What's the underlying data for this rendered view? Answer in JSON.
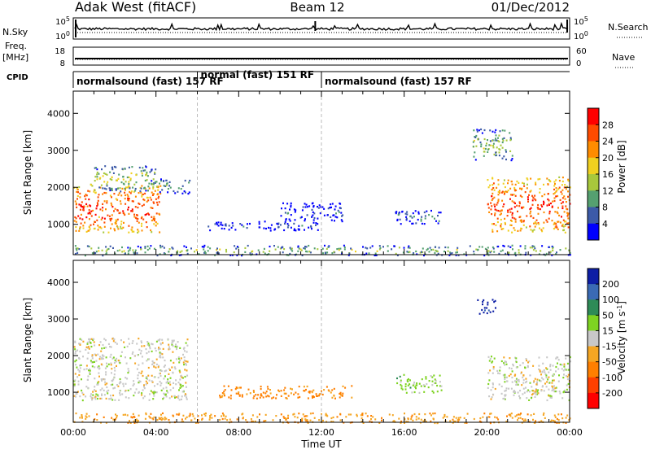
{
  "header": {
    "station": "Adak West (fitACF)",
    "beam": "Beam 12",
    "date": "01/Dec/2012"
  },
  "strip_labels": {
    "nsky": "N.Sky",
    "nsearch": "N.Search",
    "freq_line1": "Freq.",
    "freq_line2": "[MHz]",
    "nave": "Nave",
    "cpid": "CPID"
  },
  "axis": {
    "x_label": "Time UT",
    "y_label": "Slant Range [km]",
    "x_ticks": [
      "00:00",
      "04:00",
      "08:00",
      "12:00",
      "16:00",
      "20:00",
      "00:00"
    ],
    "y_ticks": [
      "1000",
      "2000",
      "3000",
      "4000"
    ],
    "nsky_ticks": [
      "10^5",
      "10^0"
    ],
    "nsearch_ticks": [
      "10^5",
      "10^0"
    ],
    "freq_ticks": [
      "18",
      "8"
    ],
    "nave_ticks": [
      "60",
      "0"
    ]
  },
  "cpid_segments": [
    {
      "label": "normalsound (fast) 157 RF",
      "start_h": 0,
      "end_h": 6
    },
    {
      "label": "normal (fast) 151 RF",
      "start_h": 6,
      "end_h": 12
    },
    {
      "label": "normalsound (fast) 157 RF",
      "start_h": 12,
      "end_h": 24
    }
  ],
  "power_colorbar": {
    "label": "Power [dB]",
    "ticks": [
      "28",
      "24",
      "20",
      "16",
      "12",
      "8",
      "4"
    ],
    "colors": [
      "#ff0000",
      "#ff4b00",
      "#ff8c00",
      "#f0d020",
      "#a8c83c",
      "#55a070",
      "#3c5aa8",
      "#0000ff"
    ]
  },
  "velocity_colorbar": {
    "label": "Velocity [m s^-1]",
    "ticks": [
      "200",
      "100",
      "50",
      "15",
      "-15",
      "-50",
      "-100",
      "-200"
    ],
    "colors": [
      "#0d1ea5",
      "#3a6ab4",
      "#2e8b57",
      "#7ed321",
      "#c8c8c8",
      "#f5a623",
      "#ff7f00",
      "#ff4000",
      "#ff0000"
    ]
  },
  "chart_data": [
    {
      "type": "heatmap",
      "title": "Power",
      "xlabel": "Time UT",
      "ylabel": "Slant Range [km]",
      "xlim": [
        0,
        24
      ],
      "ylim": [
        180,
        4600
      ],
      "colorbar_label": "Power [dB]",
      "colorbar_range": [
        0,
        32
      ],
      "echo_regions": [
        {
          "t0": 0.0,
          "t1": 4.2,
          "r0": 800,
          "r1": 2100,
          "db": 28
        },
        {
          "t0": 1.0,
          "t1": 4.0,
          "r0": 1900,
          "r1": 2600,
          "db": 16
        },
        {
          "t0": 3.7,
          "t1": 5.6,
          "r0": 1850,
          "r1": 2250,
          "db": 12
        },
        {
          "t0": 6.5,
          "t1": 11.8,
          "r0": 850,
          "r1": 1100,
          "db": 6
        },
        {
          "t0": 10.0,
          "t1": 13.0,
          "r0": 1100,
          "r1": 1600,
          "db": 6
        },
        {
          "t0": 15.5,
          "t1": 17.8,
          "r0": 1000,
          "r1": 1400,
          "db": 8
        },
        {
          "t0": 19.3,
          "t1": 21.2,
          "r0": 2750,
          "r1": 3600,
          "db": 14
        },
        {
          "t0": 20.0,
          "t1": 24.0,
          "r0": 800,
          "r1": 2300,
          "db": 28
        },
        {
          "t0": 0.0,
          "t1": 24.0,
          "r0": 180,
          "r1": 450,
          "db": 14
        }
      ]
    },
    {
      "type": "heatmap",
      "title": "Velocity",
      "xlabel": "Time UT",
      "ylabel": "Slant Range [km]",
      "xlim": [
        0,
        24
      ],
      "ylim": [
        180,
        4600
      ],
      "colorbar_label": "Velocity [m s^-1]",
      "colorbar_range": [
        -240,
        240
      ],
      "echo_regions": [
        {
          "t0": 0.0,
          "t1": 5.5,
          "r0": 800,
          "r1": 2500,
          "v": 0
        },
        {
          "t0": 7.0,
          "t1": 13.5,
          "r0": 850,
          "r1": 1200,
          "v": -60
        },
        {
          "t0": 15.5,
          "t1": 17.8,
          "r0": 1000,
          "r1": 1500,
          "v": 30
        },
        {
          "t0": 19.5,
          "t1": 20.4,
          "r0": 3150,
          "r1": 3550,
          "v": 220
        },
        {
          "t0": 20.0,
          "t1": 24.0,
          "r0": 800,
          "r1": 2000,
          "v": 0
        },
        {
          "t0": 0.0,
          "t1": 24.0,
          "r0": 180,
          "r1": 450,
          "v": -40
        }
      ]
    }
  ]
}
